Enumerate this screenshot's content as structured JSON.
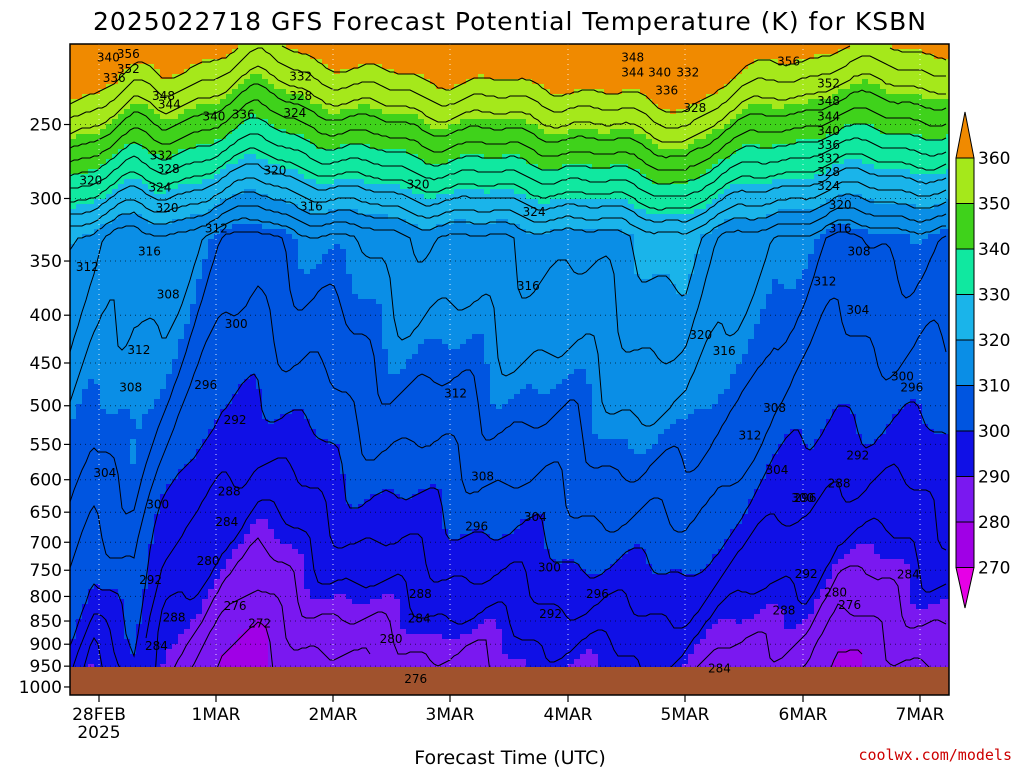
{
  "chart_data": {
    "type": "heatmap",
    "title": "2025022718 GFS Forecast Potential Temperature (K) for KSBN",
    "xlabel": "Forecast Time (UTC)",
    "ylabel": "",
    "y_axis": {
      "scale": "log-pressure",
      "unit": "hPa",
      "ticks": [
        250,
        300,
        350,
        400,
        450,
        500,
        550,
        600,
        650,
        700,
        750,
        800,
        850,
        900,
        950,
        1000
      ],
      "range": [
        1020,
        205
      ]
    },
    "x_axis": {
      "ticks": [
        {
          "label": "28FEB",
          "sublabel": "2025",
          "time": "2025-02-28T00"
        },
        {
          "label": "1MAR",
          "time": "2025-03-01T00"
        },
        {
          "label": "2MAR",
          "time": "2025-03-02T00"
        },
        {
          "label": "3MAR",
          "time": "2025-03-03T00"
        },
        {
          "label": "4MAR",
          "time": "2025-03-04T00"
        },
        {
          "label": "5MAR",
          "time": "2025-03-05T00"
        },
        {
          "label": "6MAR",
          "time": "2025-03-06T00"
        },
        {
          "label": "7MAR",
          "time": "2025-03-07T00"
        }
      ],
      "range": [
        "2025-02-27T18",
        "2025-03-07T06"
      ]
    },
    "grid": true,
    "colorbar": {
      "placement": "right",
      "levels": [
        270,
        280,
        290,
        300,
        310,
        320,
        330,
        340,
        350,
        360
      ],
      "colors": [
        "#e600e6",
        "#a000e6",
        "#7a18f0",
        "#1010e6",
        "#0055e0",
        "#0a8ee6",
        "#1ab4ea",
        "#10e8a0",
        "#3fd21b",
        "#a5e81b",
        "#ffff1a",
        "#f0b820",
        "#f08a00"
      ]
    },
    "ground_color": "#a0522d",
    "contour_labels": [
      {
        "v": "340",
        "t": 0.08,
        "p": 212
      },
      {
        "v": "336",
        "t": 0.13,
        "p": 223
      },
      {
        "v": "356",
        "t": 0.25,
        "p": 210
      },
      {
        "v": "352",
        "t": 0.25,
        "p": 218
      },
      {
        "v": "348",
        "t": 0.55,
        "p": 233
      },
      {
        "v": "344",
        "t": 0.6,
        "p": 238
      },
      {
        "v": "340",
        "t": 0.98,
        "p": 245
      },
      {
        "v": "336",
        "t": 1.23,
        "p": 244
      },
      {
        "v": "332",
        "t": 1.72,
        "p": 222
      },
      {
        "v": "328",
        "t": 1.72,
        "p": 233
      },
      {
        "v": "324",
        "t": 1.67,
        "p": 243
      },
      {
        "v": "320",
        "t": -0.07,
        "p": 287
      },
      {
        "v": "324",
        "t": 0.52,
        "p": 292
      },
      {
        "v": "332",
        "t": 0.53,
        "p": 270
      },
      {
        "v": "328",
        "t": 0.59,
        "p": 279
      },
      {
        "v": "320",
        "t": 0.58,
        "p": 307
      },
      {
        "v": "316",
        "t": 0.43,
        "p": 342
      },
      {
        "v": "312",
        "t": 1.0,
        "p": 323
      },
      {
        "v": "320",
        "t": 1.5,
        "p": 280
      },
      {
        "v": "316",
        "t": 1.81,
        "p": 306
      },
      {
        "v": "312",
        "t": -0.1,
        "p": 355
      },
      {
        "v": "308",
        "t": 0.59,
        "p": 380
      },
      {
        "v": "312",
        "t": 0.34,
        "p": 436
      },
      {
        "v": "308",
        "t": 0.27,
        "p": 478
      },
      {
        "v": "304",
        "t": 0.05,
        "p": 590
      },
      {
        "v": "300",
        "t": 0.5,
        "p": 638
      },
      {
        "v": "300",
        "t": 1.17,
        "p": 409
      },
      {
        "v": "296",
        "t": 0.91,
        "p": 475
      },
      {
        "v": "292",
        "t": 1.16,
        "p": 518
      },
      {
        "v": "288",
        "t": 1.11,
        "p": 618
      },
      {
        "v": "284",
        "t": 1.09,
        "p": 666
      },
      {
        "v": "280",
        "t": 0.93,
        "p": 733
      },
      {
        "v": "276",
        "t": 1.16,
        "p": 819
      },
      {
        "v": "272",
        "t": 1.37,
        "p": 855
      },
      {
        "v": "292",
        "t": 0.44,
        "p": 768
      },
      {
        "v": "288",
        "t": 0.64,
        "p": 843
      },
      {
        "v": "284",
        "t": 0.49,
        "p": 904
      },
      {
        "v": "320",
        "t": 2.72,
        "p": 290
      },
      {
        "v": "324",
        "t": 3.71,
        "p": 310
      },
      {
        "v": "316",
        "t": 3.66,
        "p": 372
      },
      {
        "v": "312",
        "t": 3.04,
        "p": 485
      },
      {
        "v": "308",
        "t": 3.27,
        "p": 595
      },
      {
        "v": "304",
        "t": 3.72,
        "p": 658
      },
      {
        "v": "300",
        "t": 3.84,
        "p": 745
      },
      {
        "v": "296",
        "t": 3.22,
        "p": 673
      },
      {
        "v": "296",
        "t": 4.25,
        "p": 795
      },
      {
        "v": "292",
        "t": 3.85,
        "p": 835
      },
      {
        "v": "288",
        "t": 2.74,
        "p": 795
      },
      {
        "v": "284",
        "t": 2.73,
        "p": 845
      },
      {
        "v": "280",
        "t": 2.49,
        "p": 888
      },
      {
        "v": "276",
        "t": 2.7,
        "p": 980
      },
      {
        "v": "348",
        "t": 4.55,
        "p": 212
      },
      {
        "v": "344",
        "t": 4.55,
        "p": 220
      },
      {
        "v": "340",
        "t": 4.78,
        "p": 220
      },
      {
        "v": "332",
        "t": 5.02,
        "p": 220
      },
      {
        "v": "336",
        "t": 4.84,
        "p": 230
      },
      {
        "v": "328",
        "t": 5.08,
        "p": 240
      },
      {
        "v": "320",
        "t": 5.13,
        "p": 420
      },
      {
        "v": "316",
        "t": 5.33,
        "p": 437
      },
      {
        "v": "312",
        "t": 5.55,
        "p": 538
      },
      {
        "v": "308",
        "t": 5.76,
        "p": 503
      },
      {
        "v": "304",
        "t": 5.78,
        "p": 586
      },
      {
        "v": "300",
        "t": 6.0,
        "p": 628
      },
      {
        "v": "296",
        "t": 6.02,
        "p": 628
      },
      {
        "v": "292",
        "t": 6.03,
        "p": 757
      },
      {
        "v": "288",
        "t": 5.84,
        "p": 828
      },
      {
        "v": "284",
        "t": 5.29,
        "p": 955
      },
      {
        "v": "280",
        "t": 6.28,
        "p": 792
      },
      {
        "v": "276",
        "t": 6.4,
        "p": 817
      },
      {
        "v": "284",
        "t": 6.9,
        "p": 758
      },
      {
        "v": "288",
        "t": 6.31,
        "p": 606
      },
      {
        "v": "292",
        "t": 6.47,
        "p": 565
      },
      {
        "v": "296",
        "t": 6.93,
        "p": 478
      },
      {
        "v": "300",
        "t": 6.85,
        "p": 465
      },
      {
        "v": "304",
        "t": 6.47,
        "p": 395
      },
      {
        "v": "308",
        "t": 6.48,
        "p": 342
      },
      {
        "v": "312",
        "t": 6.19,
        "p": 368
      },
      {
        "v": "316",
        "t": 6.32,
        "p": 323
      },
      {
        "v": "320",
        "t": 6.32,
        "p": 305
      },
      {
        "v": "324",
        "t": 6.22,
        "p": 291
      },
      {
        "v": "328",
        "t": 6.22,
        "p": 281
      },
      {
        "v": "332",
        "t": 6.22,
        "p": 272
      },
      {
        "v": "336",
        "t": 6.22,
        "p": 263
      },
      {
        "v": "340",
        "t": 6.22,
        "p": 254
      },
      {
        "v": "344",
        "t": 6.22,
        "p": 245
      },
      {
        "v": "348",
        "t": 6.22,
        "p": 236
      },
      {
        "v": "352",
        "t": 6.22,
        "p": 226
      },
      {
        "v": "356",
        "t": 5.88,
        "p": 214
      }
    ]
  },
  "credit": "coolwx.com/models"
}
